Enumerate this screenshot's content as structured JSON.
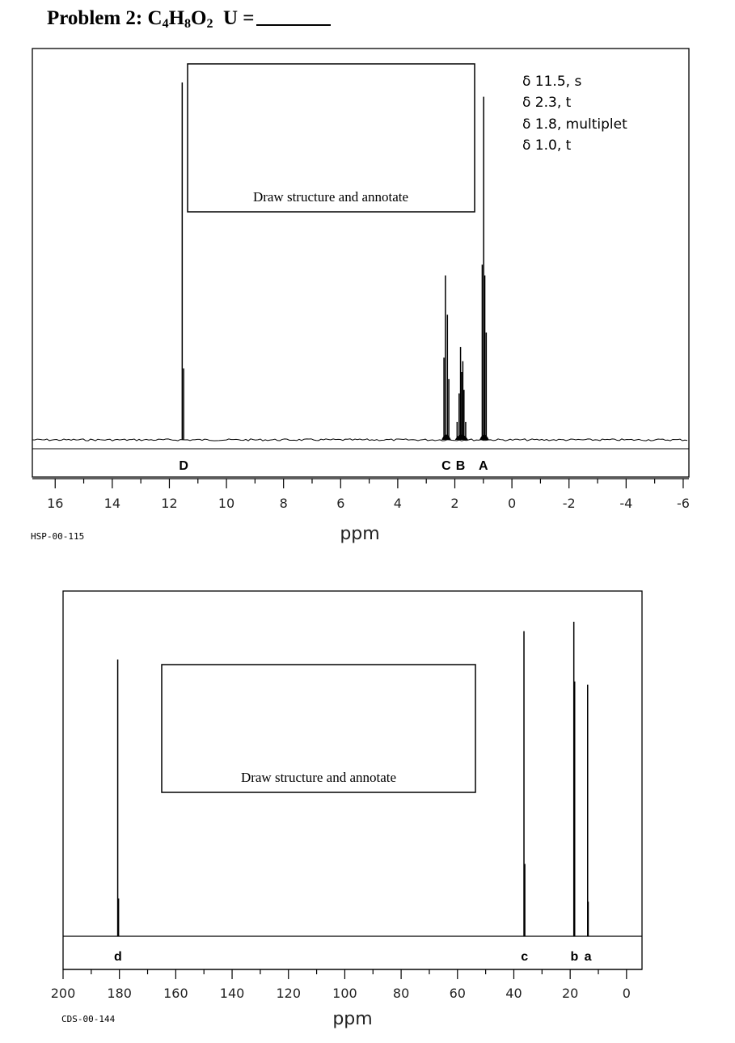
{
  "problem": {
    "label": "Problem 2: ",
    "formula": [
      {
        "t": "C",
        "sub": "4"
      },
      {
        "t": "H",
        "sub": "8"
      },
      {
        "t": "O",
        "sub": "2"
      }
    ],
    "unsaturation_label": "U ="
  },
  "chart_data": [
    {
      "type": "line",
      "nucleus": "1H",
      "code": "HSP-00-115",
      "xlabel": "ppm",
      "xlim": [
        16.8,
        -6.2
      ],
      "x_ticks": [
        "16",
        "14",
        "12",
        "10",
        "8",
        "6",
        "4",
        "2",
        "0",
        "-2",
        "-4",
        "-6"
      ],
      "x_tick_values": [
        16,
        14,
        12,
        10,
        8,
        6,
        4,
        2,
        0,
        -2,
        -4,
        -6
      ],
      "ylim": [
        0,
        100
      ],
      "structure_box_text": "Draw structure and annotate",
      "annotations": [
        "δ 11.5, s",
        "δ 2.3, t",
        "δ 1.8, multiplet",
        "δ 1.0, t"
      ],
      "peak_labels": [
        {
          "label": "D",
          "ppm": 11.5
        },
        {
          "label": "C",
          "ppm": 2.3
        },
        {
          "label": "B",
          "ppm": 1.8
        },
        {
          "label": "A",
          "ppm": 1.0
        }
      ],
      "peaks": [
        {
          "ppm": 11.55,
          "height": 100
        },
        {
          "ppm": 11.5,
          "height": 20
        },
        {
          "ppm": 2.38,
          "height": 23
        },
        {
          "ppm": 2.33,
          "height": 46
        },
        {
          "ppm": 2.26,
          "height": 35
        },
        {
          "ppm": 2.21,
          "height": 17
        },
        {
          "ppm": 1.92,
          "height": 5
        },
        {
          "ppm": 1.85,
          "height": 13
        },
        {
          "ppm": 1.8,
          "height": 26
        },
        {
          "ppm": 1.76,
          "height": 19
        },
        {
          "ppm": 1.72,
          "height": 22
        },
        {
          "ppm": 1.68,
          "height": 14
        },
        {
          "ppm": 1.62,
          "height": 5
        },
        {
          "ppm": 1.04,
          "height": 49
        },
        {
          "ppm": 0.99,
          "height": 96
        },
        {
          "ppm": 0.95,
          "height": 46
        },
        {
          "ppm": 0.9,
          "height": 30
        }
      ]
    },
    {
      "type": "line",
      "nucleus": "13C",
      "code": "CDS-00-144",
      "xlabel": "ppm",
      "xlim": [
        200,
        -5.5
      ],
      "x_ticks": [
        "200",
        "180",
        "160",
        "140",
        "120",
        "100",
        "80",
        "60",
        "40",
        "20",
        "0"
      ],
      "x_tick_values": [
        200,
        180,
        160,
        140,
        120,
        100,
        80,
        60,
        40,
        20,
        0
      ],
      "ylim": [
        0,
        100
      ],
      "structure_box_text": "Draw structure and annotate",
      "peak_labels": [
        {
          "label": "d",
          "ppm": 180.5
        },
        {
          "label": "c",
          "ppm": 36.2
        },
        {
          "label": "b",
          "ppm": 18.5
        },
        {
          "label": "a",
          "ppm": 13.7
        }
      ],
      "peaks": [
        {
          "ppm": 180.6,
          "height": 88
        },
        {
          "ppm": 180.3,
          "height": 12
        },
        {
          "ppm": 36.4,
          "height": 97
        },
        {
          "ppm": 36.1,
          "height": 23
        },
        {
          "ppm": 18.7,
          "height": 100
        },
        {
          "ppm": 18.4,
          "height": 81
        },
        {
          "ppm": 13.8,
          "height": 80
        },
        {
          "ppm": 13.6,
          "height": 11
        }
      ]
    }
  ]
}
